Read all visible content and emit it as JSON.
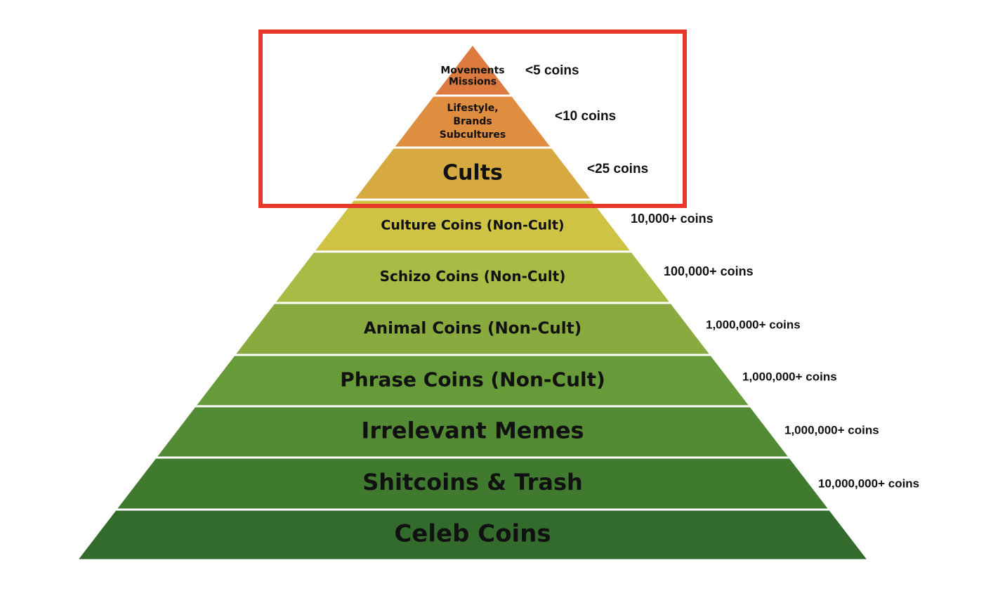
{
  "highlight_color": "#e8382a",
  "tiers": [
    {
      "label": [
        "Movements",
        "Missions"
      ],
      "count": "<5 coins",
      "color": "#dc7a40"
    },
    {
      "label": [
        "Lifestyle,",
        "Brands",
        "Subcultures"
      ],
      "count": "<10 coins",
      "color": "#df8d3f"
    },
    {
      "label": [
        "Cults"
      ],
      "count": "<25 coins",
      "color": "#d6aa40"
    },
    {
      "label": [
        "Culture Coins (Non-Cult)"
      ],
      "count": "10,000+ coins",
      "color": "#cec345"
    },
    {
      "label": [
        "Schizo Coins (Non-Cult)"
      ],
      "count": "100,000+ coins",
      "color": "#a9ba45"
    },
    {
      "label": [
        "Animal Coins (Non-Cult)"
      ],
      "count": "1,000,000+ coins",
      "color": "#88aa3f"
    },
    {
      "label": [
        "Phrase Coins (Non-Cult)"
      ],
      "count": "1,000,000+ coins",
      "color": "#679a39"
    },
    {
      "label": [
        "Irrelevant Memes"
      ],
      "count": "1,000,000+ coins",
      "color": "#528b33"
    },
    {
      "label": [
        "Shitcoins & Trash"
      ],
      "count": "10,000,000+ coins",
      "color": "#3f7a2e"
    },
    {
      "label": [
        "Celeb Coins"
      ],
      "count": "",
      "color": "#336b2c"
    }
  ]
}
